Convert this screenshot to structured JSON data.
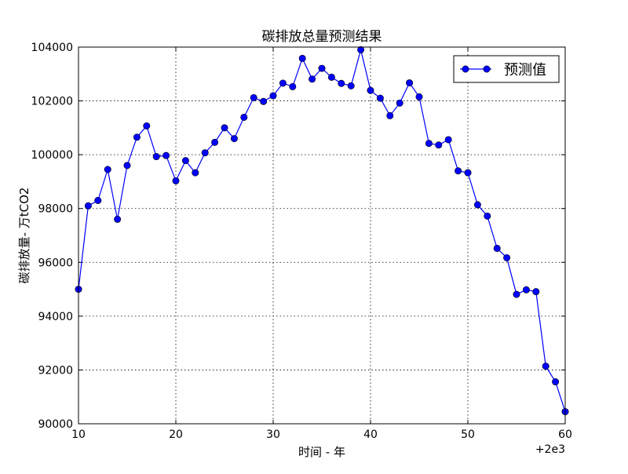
{
  "chart_data": {
    "type": "line",
    "title": "碳排放总量预测结果",
    "xlabel": "时间 - 年",
    "ylabel": "碳排放量- 万tCO2",
    "x_offset_label": "+2e3",
    "xlim": [
      10,
      60
    ],
    "ylim": [
      90000,
      104000
    ],
    "x_ticks": [
      10,
      20,
      30,
      40,
      50,
      60
    ],
    "y_ticks": [
      90000,
      92000,
      94000,
      96000,
      98000,
      100000,
      102000,
      104000
    ],
    "grid": true,
    "legend_position": "top-right",
    "series": [
      {
        "name": "预测值",
        "color": "#0000ff",
        "x": [
          10,
          11,
          12,
          13,
          14,
          15,
          16,
          17,
          18,
          19,
          20,
          21,
          22,
          23,
          24,
          25,
          26,
          27,
          28,
          29,
          30,
          31,
          32,
          33,
          34,
          35,
          36,
          37,
          38,
          39,
          40,
          41,
          42,
          43,
          44,
          45,
          46,
          47,
          48,
          49,
          50,
          51,
          52,
          53,
          54,
          55,
          56,
          57,
          58,
          59,
          60
        ],
        "values": [
          95000,
          98100,
          98300,
          99450,
          97600,
          99600,
          100650,
          101070,
          99930,
          99970,
          99030,
          99780,
          99330,
          100070,
          100460,
          101000,
          100600,
          101390,
          102120,
          101980,
          102190,
          102660,
          102530,
          103580,
          102810,
          103210,
          102880,
          102650,
          102560,
          103900,
          102390,
          102100,
          101450,
          101920,
          102670,
          102150,
          100420,
          100360,
          100560,
          99400,
          99330,
          98140,
          97720,
          96520,
          96170,
          94810,
          94980,
          94910,
          92140,
          91560,
          90450
        ]
      }
    ]
  }
}
